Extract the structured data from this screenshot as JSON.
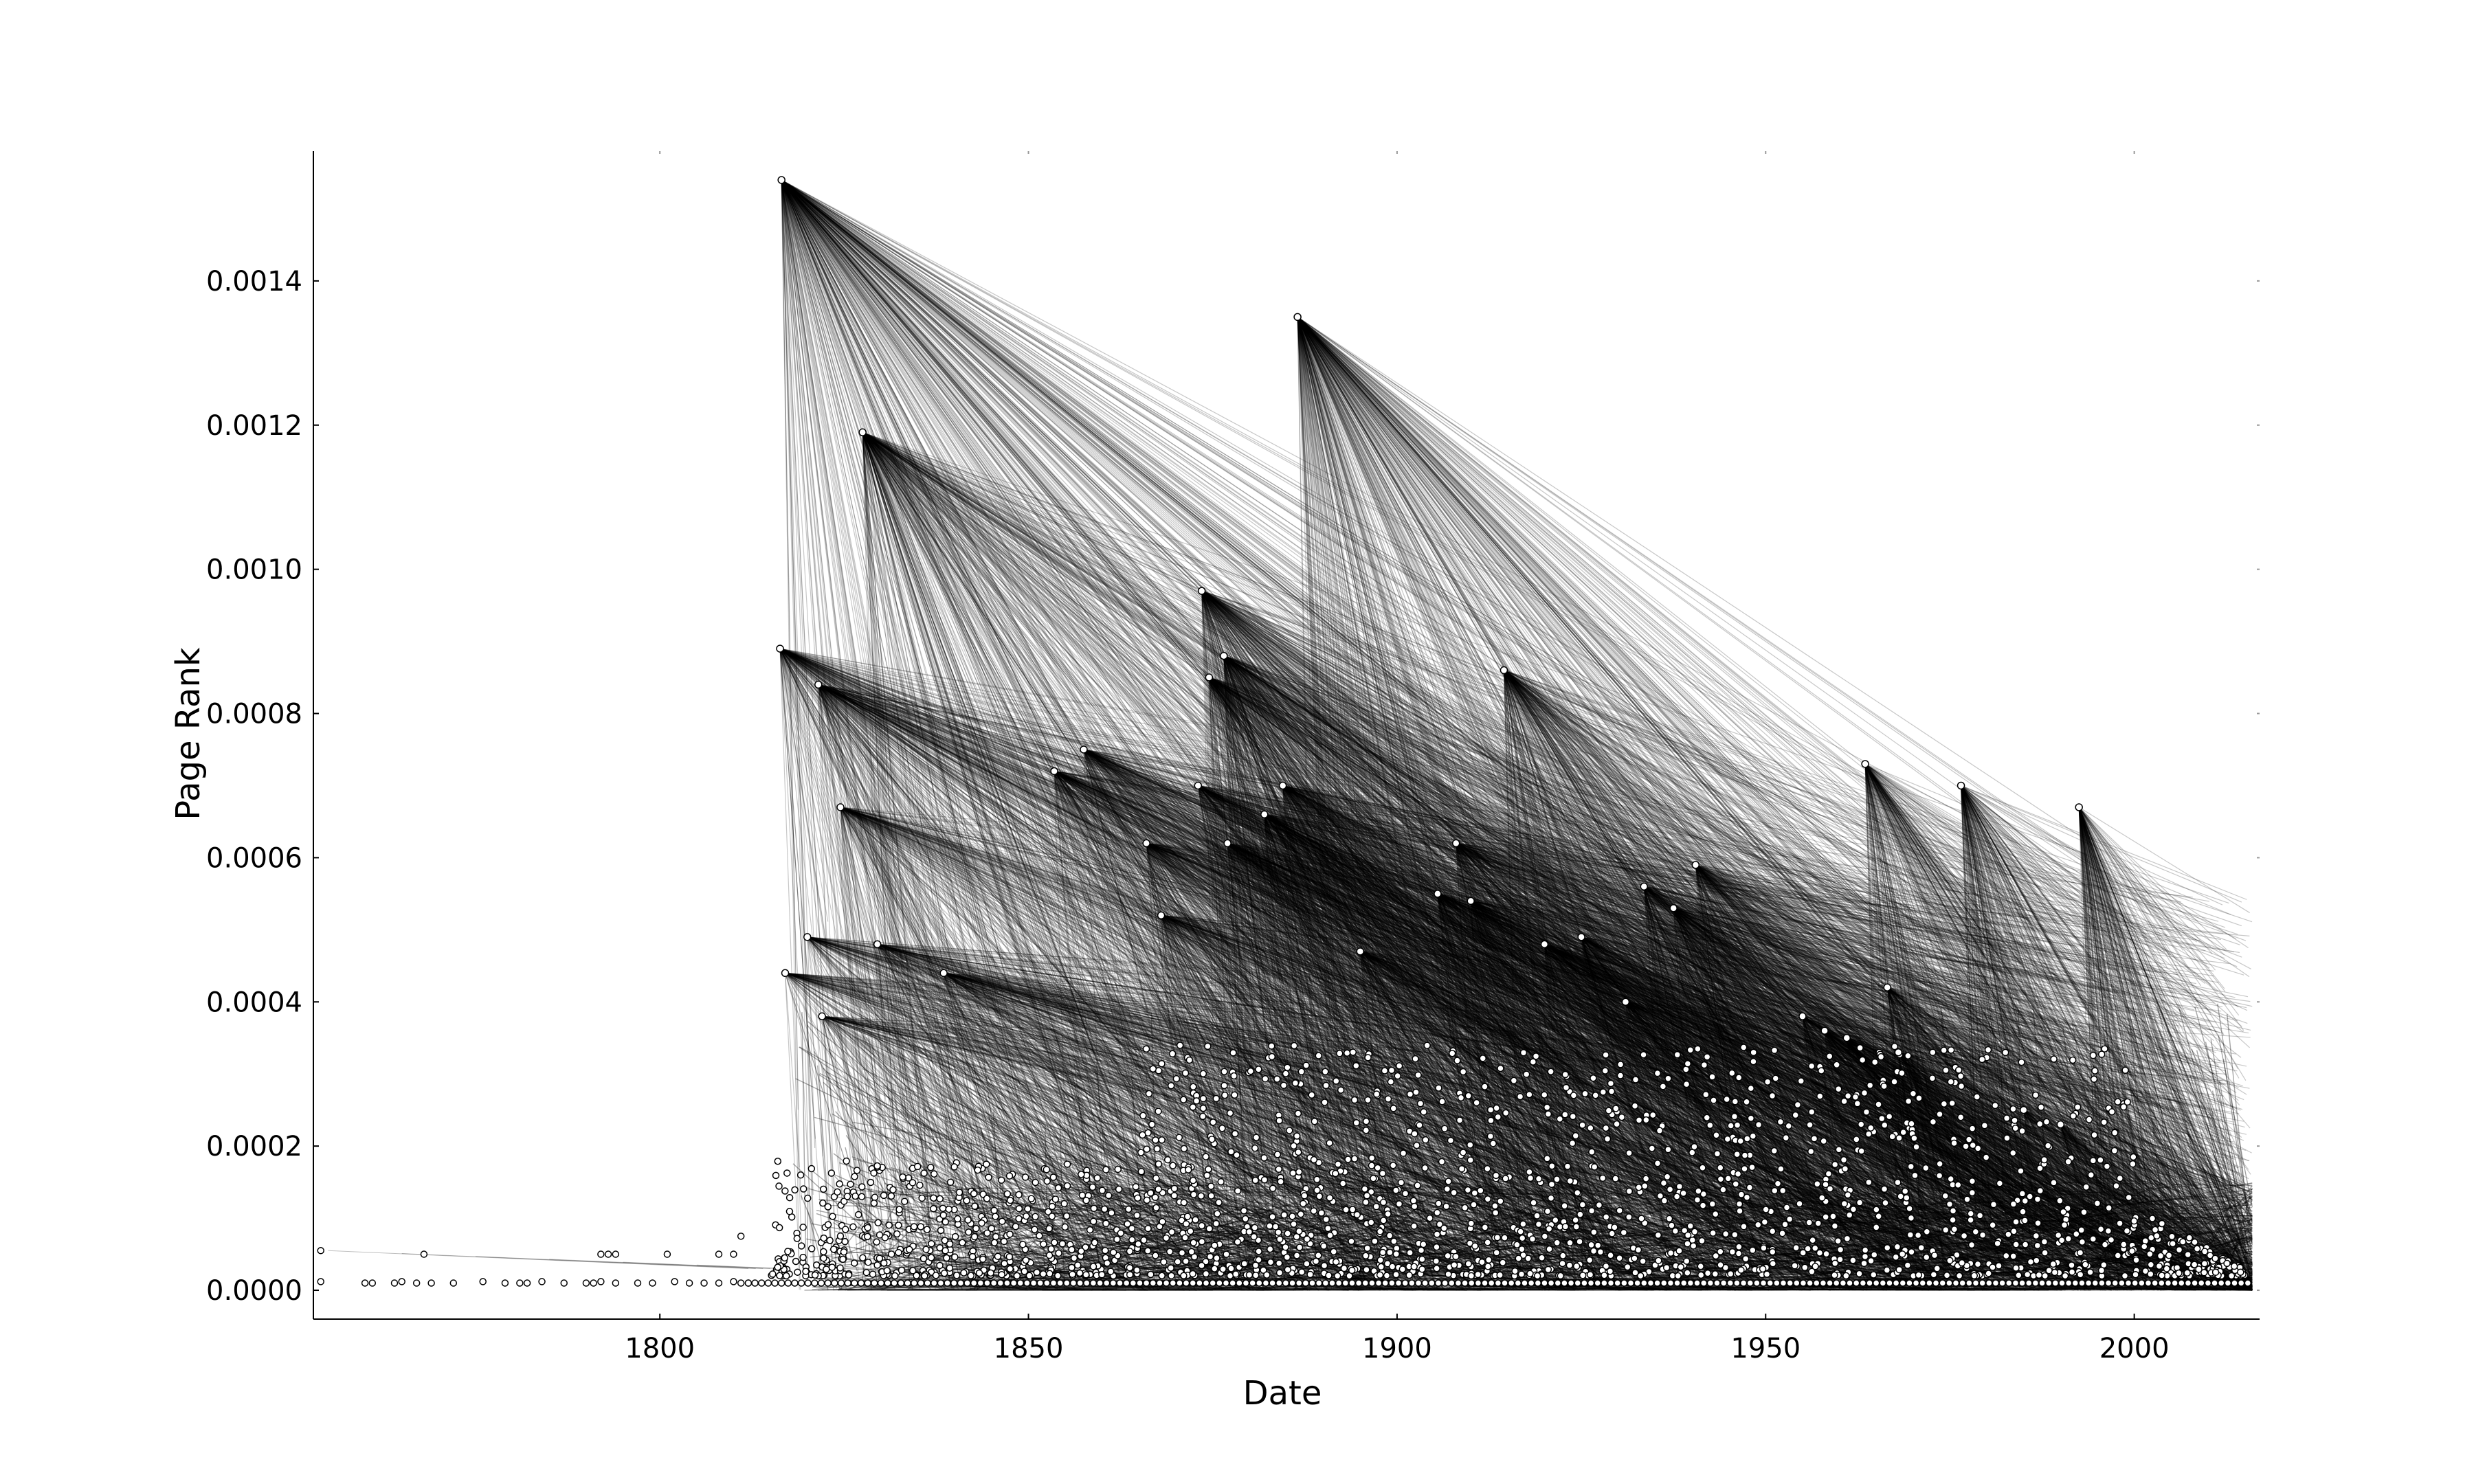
{
  "chart_data": {
    "type": "scatter",
    "title": "",
    "xlabel": "Date",
    "ylabel": "Page Rank",
    "xlim": [
      1753,
      2017
    ],
    "ylim": [
      -4e-05,
      0.00158
    ],
    "x_ticks": [
      1800,
      1850,
      1900,
      1950,
      2000
    ],
    "x_tick_labels": [
      "1800",
      "1850",
      "1900",
      "1950",
      "2000"
    ],
    "y_ticks": [
      0.0,
      0.0002,
      0.0004,
      0.0006,
      0.0008,
      0.001,
      0.0012,
      0.0014
    ],
    "y_tick_labels": [
      "0.0000",
      "0.0002",
      "0.0004",
      "0.0006",
      "0.0008",
      "0.0010",
      "0.0012",
      "0.0014"
    ],
    "grid": false,
    "legend": "none",
    "colors": {
      "edge": "#000000",
      "node_fill": "#ffffff",
      "node_stroke": "#000000",
      "axis": "#000000"
    },
    "series": [
      {
        "kind": "nodes",
        "x": [
          1816.5,
          1816.3,
          1821.5,
          1824.5,
          1827.5,
          1829.5,
          1886.5,
          1873.5,
          1876.5,
          1874.5,
          1914.5,
          1963.5,
          1976.5,
          1992.5,
          1853.5,
          1857.5,
          1873,
          1884.5,
          1877,
          1882,
          1908,
          1940.5,
          1933.5,
          1937.5,
          1905.5,
          1910,
          1920,
          1925,
          1820,
          1817,
          1822,
          1838.5,
          1866,
          1868,
          1895,
          1931,
          1955,
          1958,
          1961,
          1966.5,
          1968,
          1985,
          1990
        ],
        "y": [
          0.00154,
          0.00089,
          0.00084,
          0.00067,
          0.00119,
          0.00048,
          0.00135,
          0.00097,
          0.00088,
          0.00085,
          0.00086,
          0.00073,
          0.0007,
          0.00067,
          0.00072,
          0.00075,
          0.0007,
          0.0007,
          0.00062,
          0.00066,
          0.00062,
          0.00059,
          0.00056,
          0.00053,
          0.00055,
          0.00054,
          0.00048,
          0.00049,
          0.00049,
          0.00044,
          0.00038,
          0.00044,
          0.00062,
          0.00052,
          0.00047,
          0.0004,
          0.00038,
          0.00036,
          0.00035,
          0.00042,
          0.00033,
          0.00025,
          0.00023
        ]
      }
    ],
    "annotations": []
  }
}
